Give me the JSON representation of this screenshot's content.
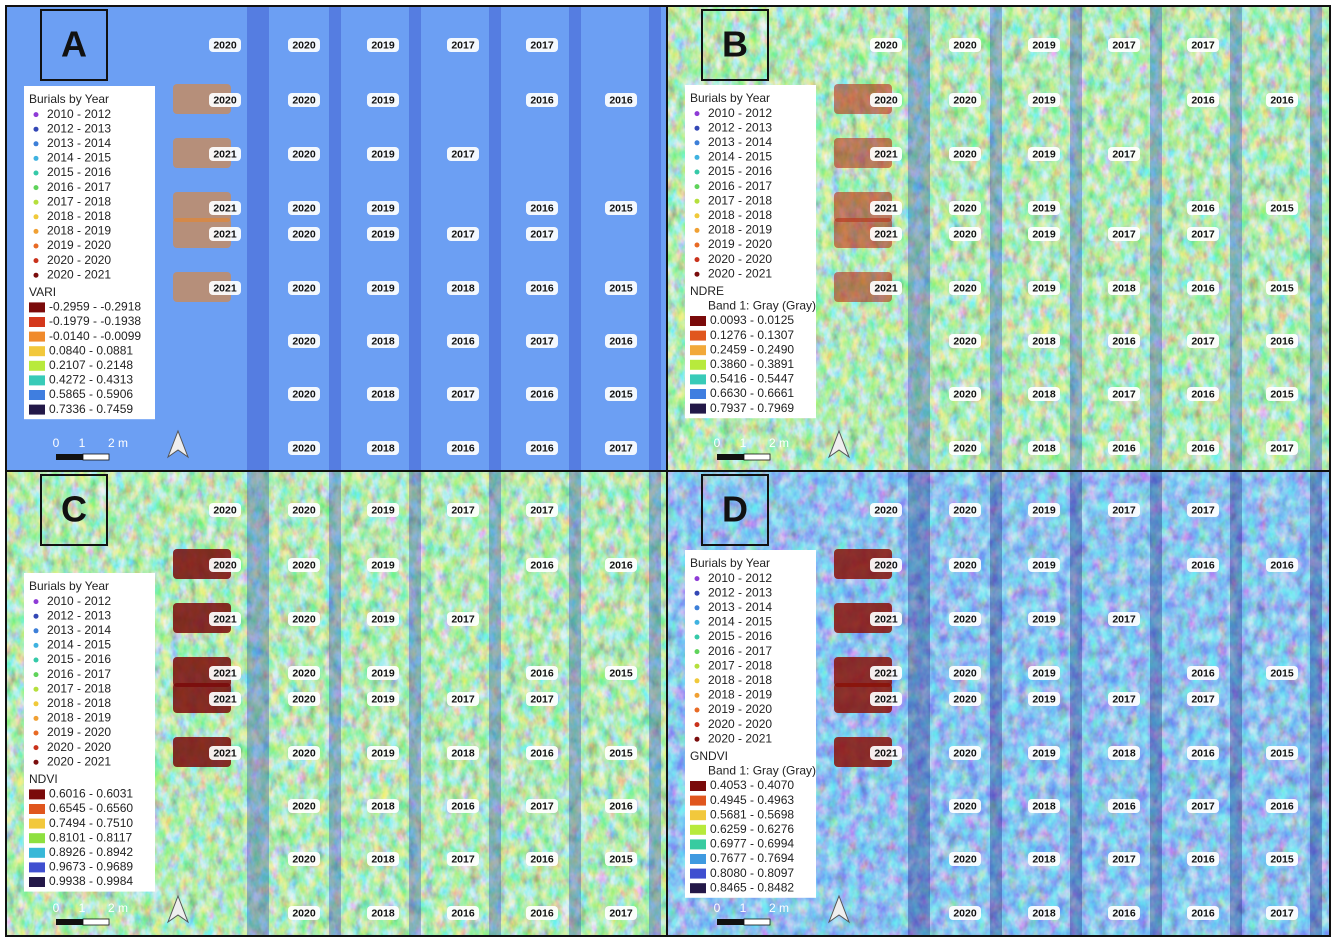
{
  "panels": [
    {
      "label": "A",
      "year_labels": [
        [
          "2020",
          "2020",
          "2019",
          "2017",
          "2017",
          null
        ],
        [
          "2020",
          "2020",
          "2019",
          null,
          "2016",
          "2016"
        ],
        [
          "2021",
          "2020",
          "2019",
          "2017",
          null,
          null
        ],
        [
          "2021",
          "2020",
          "2019",
          null,
          "2016",
          "2015"
        ],
        [
          "2021",
          "2020",
          "2019",
          "2017",
          "2017",
          null
        ],
        [
          "2021",
          "2020",
          "2019",
          "2018",
          "2016",
          "2015"
        ],
        [
          null,
          "2020",
          "2018",
          "2016",
          "2017",
          "2016"
        ],
        [
          null,
          "2020",
          "2018",
          "2017",
          "2016",
          "2015"
        ],
        [
          null,
          "2020",
          "2018",
          "2016",
          "2016",
          "2017"
        ]
      ],
      "legend": {
        "title": "Burials by Year",
        "classes": [
          {
            "label": "2010 - 2012",
            "color": "#8e3bd6"
          },
          {
            "label": "2012 - 2013",
            "color": "#3347b5"
          },
          {
            "label": "2013 - 2014",
            "color": "#3d7fd8"
          },
          {
            "label": "2014 - 2015",
            "color": "#3fb2e0"
          },
          {
            "label": "2015 - 2016",
            "color": "#35c9a8"
          },
          {
            "label": "2016 - 2017",
            "color": "#5fd35a"
          },
          {
            "label": "2017 - 2018",
            "color": "#b5df3c"
          },
          {
            "label": "2018 - 2018",
            "color": "#f0c93a"
          },
          {
            "label": "2018 - 2019",
            "color": "#f0a033"
          },
          {
            "label": "2019 - 2020",
            "color": "#e86a24"
          },
          {
            "label": "2020 - 2020",
            "color": "#c9321b"
          },
          {
            "label": "2020 - 2021",
            "color": "#7a0d0d"
          }
        ],
        "index_name": "VARI",
        "ranges": [
          {
            "label": "-0.2959 - -0.2918",
            "color": "#7a0a0a"
          },
          {
            "label": "-0.1979 - -0.1938",
            "color": "#d4381c"
          },
          {
            "label": "-0.0140 - -0.0099",
            "color": "#f08a2c"
          },
          {
            "label": "0.0840 - 0.0881",
            "color": "#f2c83c"
          },
          {
            "label": "0.2107 - 0.2148",
            "color": "#b8ea3c"
          },
          {
            "label": "0.4272 - 0.4313",
            "color": "#38cbb8"
          },
          {
            "label": "0.5865 - 0.5906",
            "color": "#3f7ee0"
          },
          {
            "label": "0.7336 - 0.7459",
            "color": "#231848"
          }
        ]
      },
      "scale_bar": [
        "0",
        "1",
        "2 m"
      ]
    },
    {
      "label": "B",
      "year_labels": [
        [
          "2020",
          "2020",
          "2019",
          "2017",
          "2017",
          null
        ],
        [
          "2020",
          "2020",
          "2019",
          null,
          "2016",
          "2016"
        ],
        [
          "2021",
          "2020",
          "2019",
          "2017",
          null,
          null
        ],
        [
          "2021",
          "2020",
          "2019",
          null,
          "2016",
          "2015"
        ],
        [
          "2021",
          "2020",
          "2019",
          "2017",
          "2017",
          null
        ],
        [
          "2021",
          "2020",
          "2019",
          "2018",
          "2016",
          "2015"
        ],
        [
          null,
          "2020",
          "2018",
          "2016",
          "2017",
          "2016"
        ],
        [
          null,
          "2020",
          "2018",
          "2017",
          "2016",
          "2015"
        ],
        [
          null,
          "2020",
          "2018",
          "2016",
          "2016",
          "2017"
        ]
      ],
      "legend": {
        "title": "Burials by Year",
        "classes": [
          {
            "label": "2010 - 2012",
            "color": "#8e3bd6"
          },
          {
            "label": "2012 - 2013",
            "color": "#3347b5"
          },
          {
            "label": "2013 - 2014",
            "color": "#3d7fd8"
          },
          {
            "label": "2014 - 2015",
            "color": "#3fb2e0"
          },
          {
            "label": "2015 - 2016",
            "color": "#35c9a8"
          },
          {
            "label": "2016 - 2017",
            "color": "#5fd35a"
          },
          {
            "label": "2017 - 2018",
            "color": "#b5df3c"
          },
          {
            "label": "2018 - 2018",
            "color": "#f0c93a"
          },
          {
            "label": "2018 - 2019",
            "color": "#f0a033"
          },
          {
            "label": "2019 - 2020",
            "color": "#e86a24"
          },
          {
            "label": "2020 - 2020",
            "color": "#c9321b"
          },
          {
            "label": "2020 - 2021",
            "color": "#7a0d0d"
          }
        ],
        "index_name": "NDRE",
        "band": "Band 1: Gray (Gray)",
        "ranges": [
          {
            "label": "0.0093 - 0.0125",
            "color": "#7a0a0a"
          },
          {
            "label": "0.1276 - 0.1307",
            "color": "#e0561e"
          },
          {
            "label": "0.2459 - 0.2490",
            "color": "#f2a93a"
          },
          {
            "label": "0.3860 - 0.3891",
            "color": "#b8ea3c"
          },
          {
            "label": "0.5416 - 0.5447",
            "color": "#38cbb8"
          },
          {
            "label": "0.6630 - 0.6661",
            "color": "#3f7ee0"
          },
          {
            "label": "0.7937 - 0.7969",
            "color": "#231848"
          }
        ]
      },
      "scale_bar": [
        "0",
        "1",
        "2 m"
      ]
    },
    {
      "label": "C",
      "year_labels": [
        [
          "2020",
          "2020",
          "2019",
          "2017",
          "2017",
          null
        ],
        [
          "2020",
          "2020",
          "2019",
          null,
          "2016",
          "2016"
        ],
        [
          "2021",
          "2020",
          "2019",
          "2017",
          null,
          null
        ],
        [
          "2021",
          "2020",
          "2019",
          null,
          "2016",
          "2015"
        ],
        [
          "2021",
          "2020",
          "2019",
          "2017",
          "2017",
          null
        ],
        [
          "2021",
          "2020",
          "2019",
          "2018",
          "2016",
          "2015"
        ],
        [
          null,
          "2020",
          "2018",
          "2016",
          "2017",
          "2016"
        ],
        [
          null,
          "2020",
          "2018",
          "2017",
          "2016",
          "2015"
        ],
        [
          null,
          "2020",
          "2018",
          "2016",
          "2016",
          "2017"
        ]
      ],
      "legend": {
        "title": "Burials by Year",
        "classes": [
          {
            "label": "2010 - 2012",
            "color": "#8e3bd6"
          },
          {
            "label": "2012 - 2013",
            "color": "#3347b5"
          },
          {
            "label": "2013 - 2014",
            "color": "#3d7fd8"
          },
          {
            "label": "2014 - 2015",
            "color": "#3fb2e0"
          },
          {
            "label": "2015 - 2016",
            "color": "#35c9a8"
          },
          {
            "label": "2016 - 2017",
            "color": "#5fd35a"
          },
          {
            "label": "2017 - 2018",
            "color": "#b5df3c"
          },
          {
            "label": "2018 - 2018",
            "color": "#f0c93a"
          },
          {
            "label": "2018 - 2019",
            "color": "#f0a033"
          },
          {
            "label": "2019 - 2020",
            "color": "#e86a24"
          },
          {
            "label": "2020 - 2020",
            "color": "#c9321b"
          },
          {
            "label": "2020 - 2021",
            "color": "#7a0d0d"
          }
        ],
        "index_name": "NDVI",
        "ranges": [
          {
            "label": "0.6016 - 0.6031",
            "color": "#7a0a0a"
          },
          {
            "label": "0.6545 - 0.6560",
            "color": "#e0561e"
          },
          {
            "label": "0.7494 - 0.7510",
            "color": "#f2c83c"
          },
          {
            "label": "0.8101 - 0.8117",
            "color": "#8ee040"
          },
          {
            "label": "0.8926 - 0.8942",
            "color": "#38b8d8"
          },
          {
            "label": "0.9673 - 0.9689",
            "color": "#3f4fd0"
          },
          {
            "label": "0.9938 - 0.9984",
            "color": "#231848"
          }
        ]
      },
      "scale_bar": [
        "0",
        "1",
        "2 m"
      ]
    },
    {
      "label": "D",
      "year_labels": [
        [
          "2020",
          "2020",
          "2019",
          "2017",
          "2017",
          null
        ],
        [
          "2020",
          "2020",
          "2019",
          null,
          "2016",
          "2016"
        ],
        [
          "2021",
          "2020",
          "2019",
          "2017",
          null,
          null
        ],
        [
          "2021",
          "2020",
          "2019",
          null,
          "2016",
          "2015"
        ],
        [
          "2021",
          "2020",
          "2019",
          "2017",
          "2017",
          null
        ],
        [
          "2021",
          "2020",
          "2019",
          "2018",
          "2016",
          "2015"
        ],
        [
          null,
          "2020",
          "2018",
          "2016",
          "2017",
          "2016"
        ],
        [
          null,
          "2020",
          "2018",
          "2017",
          "2016",
          "2015"
        ],
        [
          null,
          "2020",
          "2018",
          "2016",
          "2016",
          "2017"
        ]
      ],
      "legend": {
        "title": "Burials by Year",
        "classes": [
          {
            "label": "2010 - 2012",
            "color": "#8e3bd6"
          },
          {
            "label": "2012 - 2013",
            "color": "#3347b5"
          },
          {
            "label": "2013 - 2014",
            "color": "#3d7fd8"
          },
          {
            "label": "2014 - 2015",
            "color": "#3fb2e0"
          },
          {
            "label": "2015 - 2016",
            "color": "#35c9a8"
          },
          {
            "label": "2016 - 2017",
            "color": "#5fd35a"
          },
          {
            "label": "2017 - 2018",
            "color": "#b5df3c"
          },
          {
            "label": "2018 - 2018",
            "color": "#f0c93a"
          },
          {
            "label": "2018 - 2019",
            "color": "#f0a033"
          },
          {
            "label": "2019 - 2020",
            "color": "#e86a24"
          },
          {
            "label": "2020 - 2020",
            "color": "#c9321b"
          },
          {
            "label": "2020 - 2021",
            "color": "#7a0d0d"
          }
        ],
        "index_name": "GNDVI",
        "band": "Band 1: Gray (Gray)",
        "ranges": [
          {
            "label": "0.4053 - 0.4070",
            "color": "#7a0a0a"
          },
          {
            "label": "0.4945 - 0.4963",
            "color": "#e0561e"
          },
          {
            "label": "0.5681 - 0.5698",
            "color": "#f2c83c"
          },
          {
            "label": "0.6259 - 0.6276",
            "color": "#b8ea3c"
          },
          {
            "label": "0.6977 - 0.6994",
            "color": "#38cba0"
          },
          {
            "label": "0.7677 - 0.7694",
            "color": "#3f9ae0"
          },
          {
            "label": "0.8080 - 0.8097",
            "color": "#3f4fd0"
          },
          {
            "label": "0.8465 - 0.8482",
            "color": "#231848"
          }
        ]
      },
      "scale_bar": [
        "0",
        "1",
        "2 m"
      ]
    }
  ]
}
